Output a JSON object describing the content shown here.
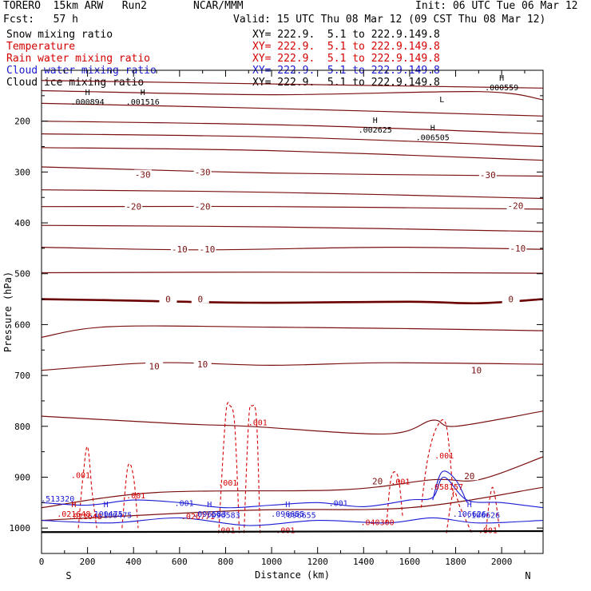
{
  "header": {
    "model": "TORERO  15km ARW   Run2",
    "org": "NCAR/MMM",
    "init": "Init: 06 UTC Tue 06 Mar 12",
    "fcst": "Fcst:   57 h",
    "valid": "Valid: 15 UTC Thu 08 Mar 12 (09 CST Thu 08 Mar 12)"
  },
  "fields": [
    {
      "name": "Snow mixing ratio",
      "xy": "XY= 222.9.  5.1 to 222.9.149.8",
      "color": "#000000"
    },
    {
      "name": "Temperature",
      "xy": "XY= 222.9.  5.1 to 222.9.149.8",
      "color": "#d40000"
    },
    {
      "name": "Rain water mixing ratio",
      "xy": "XY= 222.9.  5.1 to 222.9.149.8",
      "color": "#d40000"
    },
    {
      "name": "Cloud water mixing ratio",
      "xy": "XY= 222.9.  5.1 to 222.9.149.8",
      "color": "#1a1ad4"
    },
    {
      "name": "Cloud ice mixing ratio",
      "xy": "XY= 222.9.  5.1 to 222.9.149.8",
      "color": "#000000"
    }
  ],
  "chart_data": {
    "type": "cross-section contour",
    "xlabel": "Distance (km)",
    "ylabel": "Pressure (hPa)",
    "xlim": [
      0,
      2180
    ],
    "ylim": [
      1050,
      100
    ],
    "x_ticks": [
      0,
      200,
      400,
      600,
      800,
      1000,
      1200,
      1400,
      1600,
      1800,
      2000
    ],
    "y_ticks": [
      200,
      300,
      400,
      500,
      600,
      700,
      800,
      900,
      1000
    ],
    "x_end_labels": {
      "left": "S",
      "right": "N"
    },
    "colors": {
      "temperature": "#7a1010",
      "rain": "#d40000",
      "cloud_water": "#1a1ad4",
      "ice": "#000000",
      "zero_line": "#6a0000"
    },
    "temperature_isotherms": [
      {
        "value": -45,
        "x": [
          0,
          2180
        ],
        "p": [
          120,
          135
        ]
      },
      {
        "value": -40,
        "x": [
          0,
          1000,
          1900,
          2180
        ],
        "p": [
          140,
          148,
          142,
          158
        ]
      },
      {
        "value": -40,
        "x": [
          0,
          1000,
          2180
        ],
        "p": [
          165,
          175,
          190
        ]
      },
      {
        "value": -35,
        "x": [
          0,
          1100,
          2180
        ],
        "p": [
          200,
          208,
          225
        ]
      },
      {
        "value": -35,
        "x": [
          0,
          1100,
          2180
        ],
        "p": [
          225,
          232,
          250
        ]
      },
      {
        "value": -35,
        "x": [
          0,
          1000,
          2180
        ],
        "p": [
          252,
          258,
          277
        ]
      },
      {
        "value": -30,
        "x": [
          0,
          1000,
          2180
        ],
        "p": [
          290,
          302,
          308
        ]
      },
      {
        "value": -25,
        "x": [
          0,
          1000,
          2180
        ],
        "p": [
          335,
          340,
          352
        ]
      },
      {
        "value": -20,
        "x": [
          0,
          1000,
          2180
        ],
        "p": [
          368,
          368,
          373
        ]
      },
      {
        "value": -15,
        "x": [
          0,
          1000,
          2180
        ],
        "p": [
          405,
          408,
          417
        ]
      },
      {
        "value": -10,
        "x": [
          0,
          700,
          1500,
          2180
        ],
        "p": [
          448,
          453,
          448,
          452
        ]
      },
      {
        "value": -5,
        "x": [
          0,
          1000,
          2180
        ],
        "p": [
          498,
          497,
          499
        ]
      },
      {
        "value": 0,
        "x": [
          0,
          300,
          900,
          1600,
          1900,
          2180
        ],
        "p": [
          550,
          552,
          557,
          555,
          558,
          550
        ]
      },
      {
        "value": 5,
        "x": [
          0,
          300,
          1000,
          1600,
          2180
        ],
        "p": [
          625,
          604,
          605,
          608,
          612
        ]
      },
      {
        "value": 10,
        "x": [
          0,
          500,
          1000,
          1500,
          2180
        ],
        "p": [
          690,
          675,
          680,
          675,
          678
        ]
      },
      {
        "value": 15,
        "x": [
          0,
          600,
          900,
          1500,
          1700,
          1800,
          2180
        ],
        "p": [
          780,
          795,
          800,
          815,
          788,
          800,
          770
        ]
      },
      {
        "value": 20,
        "x": [
          0,
          500,
          1300,
          1700,
          1900,
          2180
        ],
        "p": [
          960,
          930,
          925,
          905,
          905,
          860
        ]
      },
      {
        "value": 25,
        "x": [
          0,
          900,
          1600,
          2180
        ],
        "p": [
          985,
          965,
          960,
          920
        ]
      }
    ],
    "temperature_labels": [
      {
        "text": "-30",
        "x": 440,
        "p": 305
      },
      {
        "text": "-30",
        "x": 700,
        "p": 300
      },
      {
        "text": "-30",
        "x": 1940,
        "p": 306
      },
      {
        "text": "-20",
        "x": 400,
        "p": 368
      },
      {
        "text": "-20",
        "x": 700,
        "p": 368
      },
      {
        "text": "-20",
        "x": 2060,
        "p": 366
      },
      {
        "text": "-10",
        "x": 600,
        "p": 452
      },
      {
        "text": "-10",
        "x": 720,
        "p": 452
      },
      {
        "text": "-10",
        "x": 2070,
        "p": 450
      },
      {
        "text": "0",
        "x": 550,
        "p": 550
      },
      {
        "text": "0",
        "x": 690,
        "p": 550
      },
      {
        "text": "0",
        "x": 2040,
        "p": 550
      },
      {
        "text": "10",
        "x": 490,
        "p": 682
      },
      {
        "text": "10",
        "x": 700,
        "p": 678
      },
      {
        "text": "10",
        "x": 1890,
        "p": 690
      },
      {
        "text": "20",
        "x": 1460,
        "p": 908
      },
      {
        "text": "20",
        "x": 1860,
        "p": 898
      }
    ],
    "rain_water": [
      {
        "x": [
          770,
          800,
          820,
          840,
          860
        ],
        "p": [
          1010,
          780,
          760,
          800,
          1010
        ]
      },
      {
        "x": [
          880,
          900,
          915,
          935,
          950
        ],
        "p": [
          1010,
          790,
          760,
          790,
          1010
        ]
      },
      {
        "x": [
          160,
          180,
          200,
          220,
          240
        ],
        "p": [
          1000,
          900,
          840,
          930,
          1000
        ]
      },
      {
        "x": [
          350,
          375,
          400,
          420
        ],
        "p": [
          1000,
          880,
          900,
          1000
        ]
      },
      {
        "x": [
          1650,
          1680,
          1720,
          1760,
          1790
        ],
        "p": [
          960,
          860,
          800,
          800,
          940
        ]
      },
      {
        "x": [
          1760,
          1790,
          1820,
          1870
        ],
        "p": [
          1010,
          930,
          960,
          1010
        ]
      },
      {
        "x": [
          1500,
          1520,
          1550,
          1570
        ],
        "p": [
          990,
          900,
          900,
          980
        ]
      },
      {
        "x": [
          1930,
          1960,
          1990
        ],
        "p": [
          1010,
          920,
          1000
        ]
      }
    ],
    "cloud_water": [
      {
        "x": [
          0,
          200,
          400,
          600,
          800,
          1000,
          1200,
          1400,
          1600,
          1700,
          1750,
          1850,
          2000,
          2180
        ],
        "p": [
          950,
          955,
          945,
          950,
          960,
          955,
          950,
          958,
          945,
          940,
          900,
          945,
          950,
          960
        ]
      },
      {
        "x": [
          0,
          300,
          600,
          900,
          1200,
          1500,
          1700,
          1900,
          2180
        ],
        "p": [
          985,
          990,
          980,
          995,
          985,
          990,
          980,
          990,
          985
        ]
      },
      {
        "x": [
          1700,
          1740,
          1800,
          1850
        ],
        "p": [
          945,
          890,
          905,
          950
        ]
      }
    ],
    "contour_labels": [
      {
        "text": ".001",
        "x": 170,
        "p": 895,
        "color": "rain"
      },
      {
        "text": ".001",
        "x": 410,
        "p": 935,
        "color": "rain"
      },
      {
        "text": ".001",
        "x": 810,
        "p": 910,
        "color": "rain"
      },
      {
        "text": ".001",
        "x": 940,
        "p": 792,
        "color": "rain"
      },
      {
        "text": ".001",
        "x": 1560,
        "p": 908,
        "color": "rain"
      },
      {
        "text": ".001",
        "x": 1750,
        "p": 857,
        "color": "rain"
      },
      {
        "text": ".001",
        "x": 800,
        "p": 1004,
        "color": "rain"
      },
      {
        "text": ".001",
        "x": 1060,
        "p": 1004,
        "color": "rain"
      },
      {
        "text": ".001",
        "x": 1940,
        "p": 1004,
        "color": "rain"
      },
      {
        "text": ".021648",
        "x": 190,
        "p": 976,
        "color": "rain"
      },
      {
        "text": ".026771",
        "x": 680,
        "p": 976,
        "color": "rain"
      },
      {
        "text": ".040300",
        "x": 1460,
        "p": 988,
        "color": "rain"
      },
      {
        "text": ".058157",
        "x": 1760,
        "p": 918,
        "color": "rain"
      },
      {
        "text": ".001",
        "x": 620,
        "p": 950,
        "color": "cloud"
      },
      {
        "text": ".001",
        "x": 1290,
        "p": 950,
        "color": "cloud"
      },
      {
        "text": ".100475",
        "x": 320,
        "p": 974,
        "color": "cloud"
      },
      {
        "text": ".096583",
        "x": 790,
        "p": 974,
        "color": "cloud"
      },
      {
        "text": ".106626",
        "x": 1920,
        "p": 974,
        "color": "cloud"
      },
      {
        "text": ".096655",
        "x": 1120,
        "p": 974,
        "color": "cloud"
      },
      {
        "text": ".513320",
        "x": 70,
        "p": 942,
        "color": "cloud"
      }
    ],
    "highs": [
      {
        "label": ".000894",
        "x": 200,
        "p": 155,
        "color": "ice"
      },
      {
        "label": ".001516",
        "x": 440,
        "p": 155,
        "color": "ice"
      },
      {
        "label": ".002625",
        "x": 1450,
        "p": 210,
        "color": "ice"
      },
      {
        "label": ".006505",
        "x": 1700,
        "p": 225,
        "color": "ice"
      },
      {
        "label": ".000559",
        "x": 2000,
        "p": 127,
        "color": "ice"
      },
      {
        "label": ".021648",
        "x": 140,
        "p": 965,
        "color": "rain"
      },
      {
        "label": ".100475",
        "x": 280,
        "p": 965,
        "color": "cloud"
      },
      {
        "label": ".096583",
        "x": 730,
        "p": 965,
        "color": "cloud"
      },
      {
        "label": ".096655",
        "x": 1070,
        "p": 965,
        "color": "cloud"
      },
      {
        "label": ".106626",
        "x": 1860,
        "p": 965,
        "color": "cloud"
      }
    ],
    "low_labels": [
      {
        "text": "L",
        "x": 1740,
        "p": 163,
        "color": "ice"
      }
    ]
  }
}
